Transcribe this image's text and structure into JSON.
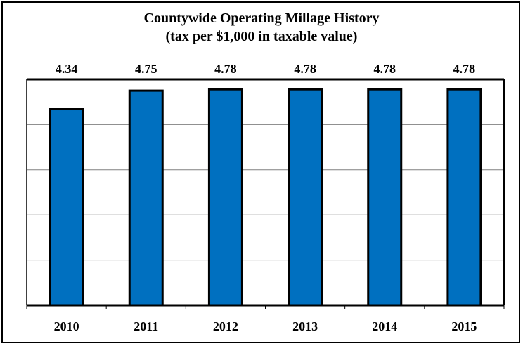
{
  "chart_data": {
    "type": "bar",
    "title": "Countywide Operating Millage History",
    "subtitle": "(tax per $1,000 in taxable value)",
    "categories": [
      "2010",
      "2011",
      "2012",
      "2013",
      "2014",
      "2015"
    ],
    "values": [
      4.34,
      4.75,
      4.78,
      4.78,
      4.78,
      4.78
    ],
    "data_labels": [
      "4.34",
      "4.75",
      "4.78",
      "4.78",
      "4.78",
      "4.78"
    ],
    "xlabel": "",
    "ylabel": "",
    "ylim": [
      0,
      5
    ],
    "grid": true,
    "legend": "none",
    "colors": {
      "bar": "#0070C0",
      "bar_outline": "#000000",
      "grid": "#808080"
    }
  }
}
